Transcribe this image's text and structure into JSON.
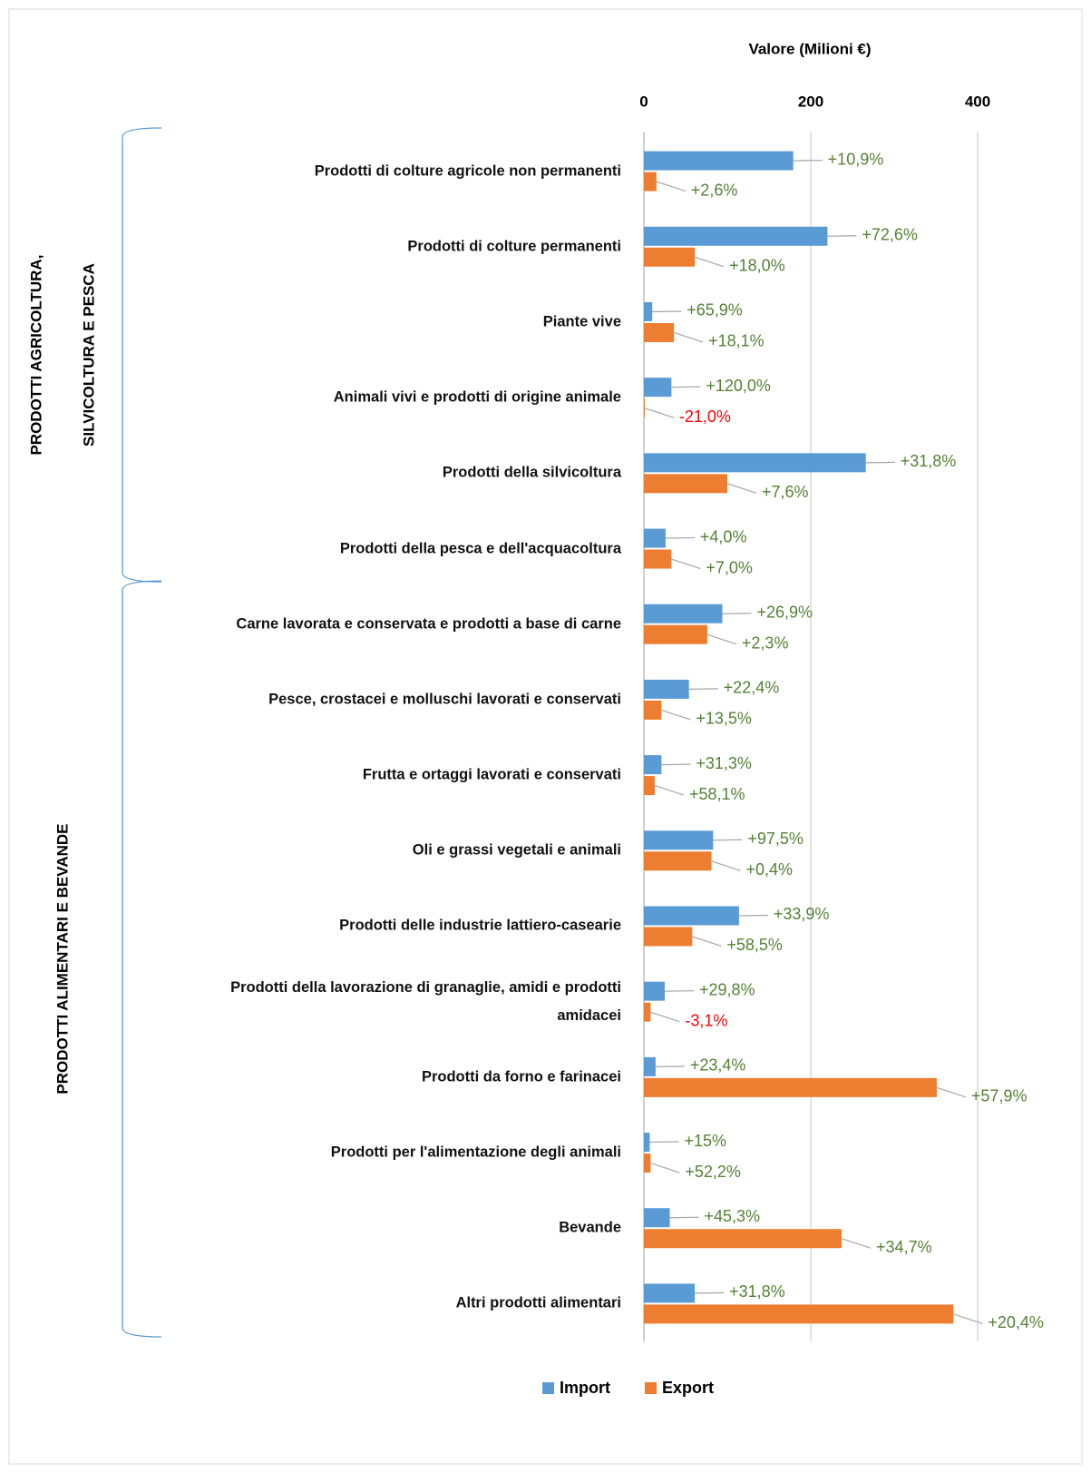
{
  "chart_data": {
    "type": "bar",
    "orientation": "horizontal",
    "x_label": "Valore (Milioni €)",
    "groups": [
      {
        "label": [
          "PRODOTTI AGRICOLTURA,",
          "SILVICOLTURA E PESCA"
        ],
        "categories": [
          "Prodotti di colture agricole non permanenti",
          "Prodotti di colture permanenti",
          "Piante vive",
          "Animali vivi e prodotti di origine animale",
          "Prodotti della silvicoltura",
          "Prodotti della pesca e dell'acquacoltura"
        ]
      },
      {
        "label": [
          "PRODOTTI ALIMENTARI E BEVANDE"
        ],
        "categories": [
          "Carne lavorata e conservata e prodotti a base di carne",
          "Pesce, crostacei e molluschi lavorati e conservati",
          "Frutta e ortaggi lavorati e conservati",
          "Oli e grassi vegetali e animali",
          "Prodotti delle industrie lattiero-casearie",
          "Prodotti della lavorazione di granaglie, amidi e prodotti amidacei",
          "Prodotti da forno e farinacei",
          "Prodotti per l'alimentazione degli animali",
          "Bevande",
          "Altri prodotti alimentari"
        ]
      }
    ],
    "series": [
      {
        "name": "Import",
        "color": "#5b9bd5",
        "values": [
          179,
          220,
          10,
          33,
          266,
          26,
          94,
          54,
          21,
          83,
          114,
          25,
          14,
          7,
          31,
          61
        ],
        "change_labels": [
          "+10,9%",
          "+72,6%",
          "+65,9%",
          "+120,0%",
          "+31,8%",
          "+4,0%",
          "+26,9%",
          "+22,4%",
          "+31,3%",
          "+97,5%",
          "+33,9%",
          "+29,8%",
          "+23,4%",
          "+15%",
          "+45,3%",
          "+31,8%"
        ]
      },
      {
        "name": "Export",
        "color": "#ed7d31",
        "values": [
          15,
          61,
          36,
          1,
          100,
          33,
          76,
          21,
          13,
          81,
          58,
          8,
          351,
          8,
          237,
          371
        ],
        "change_labels": [
          "+2,6%",
          "+18,0%",
          "+18,1%",
          "-21,0%",
          "+7,6%",
          "+7,0%",
          "+2,3%",
          "+13,5%",
          "+58,1%",
          "+0,4%",
          "+58,5%",
          "-3,1%",
          "+57,9%",
          "+52,2%",
          "+34,7%",
          "+20,4%"
        ]
      }
    ],
    "xlim": [
      0,
      400
    ],
    "xticks": [
      0,
      200,
      400
    ],
    "grid": true,
    "legend": "bottom",
    "positive_color": "#548235",
    "negative_color": "#ff0000"
  }
}
